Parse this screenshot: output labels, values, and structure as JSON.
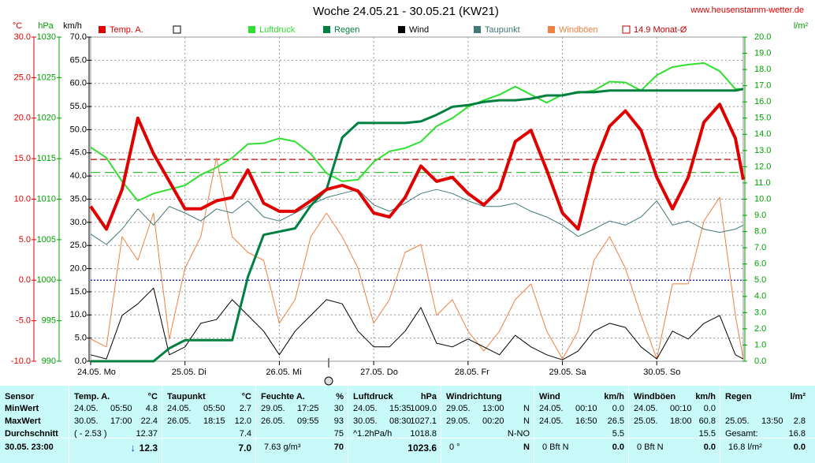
{
  "chart_data": {
    "type": "line",
    "title": "Woche 24.05.21 - 30.05.21 (KW21)",
    "source": "www.heusenstamm-wetter.de",
    "xlim": [
      0,
      166
    ],
    "xticks": [
      {
        "value": 0,
        "label": "24.05. Mo"
      },
      {
        "value": 24,
        "label": "25.05. Di"
      },
      {
        "value": 48,
        "label": "26.05. Mi"
      },
      {
        "value": 72,
        "label": "27.05. Do"
      },
      {
        "value": 96,
        "label": "28.05. Fr"
      },
      {
        "value": 120,
        "label": "29.05. Sa"
      },
      {
        "value": 144,
        "label": "30.05. So"
      }
    ],
    "grid": true,
    "axes": {
      "temp": {
        "unit": "°C",
        "color": "#e00000",
        "lim": [
          -10,
          30
        ],
        "ticks": [
          {
            "value": 30,
            "label": "30.0"
          },
          {
            "value": 25,
            "label": "25.0"
          },
          {
            "value": 20,
            "label": "20.0"
          },
          {
            "value": 15,
            "label": "15.0"
          },
          {
            "value": 10,
            "label": "10.0"
          },
          {
            "value": 5,
            "label": "5.0"
          },
          {
            "value": 0,
            "label": "0.0"
          },
          {
            "value": -5,
            "label": "-5.0"
          },
          {
            "value": -10,
            "label": "-10.0"
          }
        ]
      },
      "pressure": {
        "unit": "hPa",
        "color": "#00a000",
        "lim": [
          990,
          1030
        ],
        "ticks": [
          1030,
          1025,
          1020,
          1015,
          1010,
          1005,
          1000,
          995,
          990
        ]
      },
      "wind": {
        "unit": "km/h",
        "color": "#000000",
        "lim": [
          0,
          70
        ],
        "ticks": [
          {
            "value": 70,
            "label": "70.0"
          },
          {
            "value": 65,
            "label": "65.0"
          },
          {
            "value": 60,
            "label": "60.0"
          },
          {
            "value": 55,
            "label": "55.0"
          },
          {
            "value": 50,
            "label": "50.0"
          },
          {
            "value": 45,
            "label": "45.0"
          },
          {
            "value": 40,
            "label": "40.0"
          },
          {
            "value": 35,
            "label": "35.0"
          },
          {
            "value": 30,
            "label": "30.0"
          },
          {
            "value": 25,
            "label": "25.0"
          },
          {
            "value": 20,
            "label": "20.0"
          },
          {
            "value": 15,
            "label": "15.0"
          },
          {
            "value": 10,
            "label": "10.0"
          },
          {
            "value": 5,
            "label": "5.0"
          },
          {
            "value": 0,
            "label": "0.0"
          }
        ]
      },
      "rain": {
        "unit": "l/m²",
        "color": "#00a000",
        "lim": [
          0,
          20
        ],
        "ticks": [
          {
            "value": 20,
            "label": "20.0"
          },
          {
            "value": 19,
            "label": "19.0"
          },
          {
            "value": 18,
            "label": "18.0"
          },
          {
            "value": 17,
            "label": "17.0"
          },
          {
            "value": 16,
            "label": "16.0"
          },
          {
            "value": 15,
            "label": "15.0"
          },
          {
            "value": 14,
            "label": "14.0"
          },
          {
            "value": 13,
            "label": "13.0"
          },
          {
            "value": 12,
            "label": "12.0"
          },
          {
            "value": 11,
            "label": "11.0"
          },
          {
            "value": 10,
            "label": "10.0"
          },
          {
            "value": 9,
            "label": "9.0"
          },
          {
            "value": 8,
            "label": "8.0"
          },
          {
            "value": 7,
            "label": "7.0"
          },
          {
            "value": 6,
            "label": "6.0"
          },
          {
            "value": 5,
            "label": "5.0"
          },
          {
            "value": 4,
            "label": "4.0"
          },
          {
            "value": 3,
            "label": "3.0"
          },
          {
            "value": 2,
            "label": "2.0"
          },
          {
            "value": 1,
            "label": "1.0"
          },
          {
            "value": 0,
            "label": "0.0"
          }
        ]
      }
    },
    "x": [
      0,
      4,
      8,
      12,
      16,
      20,
      24,
      28,
      32,
      36,
      40,
      44,
      48,
      52,
      56,
      60,
      64,
      68,
      72,
      76,
      80,
      84,
      88,
      92,
      96,
      100,
      104,
      108,
      112,
      116,
      120,
      124,
      128,
      132,
      136,
      140,
      144,
      148,
      152,
      156,
      160,
      164,
      166
    ],
    "series": [
      {
        "name": "Windböen",
        "color": "#f08040",
        "axis": "wind",
        "width": 1,
        "values": [
          4.8,
          3.1,
          26.9,
          21.8,
          32.0,
          4.8,
          20.1,
          26.9,
          43.9,
          26.9,
          23.5,
          21.8,
          8.2,
          13.3,
          26.9,
          32.0,
          26.9,
          20.1,
          8.2,
          13.3,
          23.5,
          25.2,
          9.9,
          13.3,
          6.5,
          2.2,
          6.5,
          13.3,
          16.7,
          6.5,
          0.5,
          6.5,
          21.8,
          26.9,
          20.1,
          9.9,
          0.5,
          16.7,
          16.7,
          30.3,
          35.4,
          9.9,
          0.5
        ]
      },
      {
        "name": "Wind",
        "color": "#000000",
        "axis": "wind",
        "width": 1,
        "values": [
          1.4,
          0.5,
          9.9,
          12.4,
          15.8,
          1.4,
          3.1,
          8.2,
          9.0,
          13.3,
          9.9,
          6.5,
          1.4,
          6.5,
          9.9,
          13.3,
          12.4,
          6.5,
          3.1,
          3.1,
          6.5,
          11.6,
          3.9,
          3.1,
          4.8,
          3.1,
          1.4,
          5.6,
          3.1,
          1.4,
          0.3,
          2.2,
          6.5,
          8.2,
          7.3,
          3.1,
          0.5,
          6.5,
          4.8,
          8.2,
          9.9,
          1.4,
          0.5
        ]
      },
      {
        "name": "Taupunkt",
        "color": "#407878",
        "axis": "temp",
        "width": 1,
        "values": [
          5.7,
          4.4,
          6.3,
          8.8,
          6.8,
          9.1,
          8.3,
          7.3,
          8.8,
          8.3,
          9.8,
          7.8,
          7.3,
          8.3,
          9.3,
          10.2,
          10.7,
          11.2,
          9.3,
          8.5,
          9.5,
          10.7,
          11.2,
          10.7,
          9.8,
          9.1,
          9.1,
          9.5,
          8.5,
          7.8,
          6.8,
          5.4,
          6.3,
          7.3,
          6.8,
          7.8,
          9.8,
          6.8,
          7.3,
          6.3,
          5.9,
          6.3,
          6.8
        ]
      },
      {
        "name": "Luftdruck",
        "color": "#30e030",
        "axis": "pressure",
        "width": 2,
        "values": [
          1016.4,
          1015.1,
          1012.2,
          1009.8,
          1010.7,
          1011.2,
          1011.7,
          1013.0,
          1013.9,
          1015.1,
          1016.8,
          1016.9,
          1017.5,
          1017.1,
          1015.6,
          1013.2,
          1012.2,
          1012.4,
          1014.6,
          1015.9,
          1016.3,
          1017.1,
          1019.0,
          1020.0,
          1021.4,
          1022.2,
          1022.9,
          1023.9,
          1022.9,
          1021.9,
          1022.9,
          1023.1,
          1023.4,
          1024.5,
          1024.4,
          1023.4,
          1025.3,
          1026.3,
          1026.6,
          1026.8,
          1025.8,
          1023.6,
          1023.6
        ]
      },
      {
        "name": "Regen",
        "color": "#008040",
        "axis": "rain",
        "width": 3,
        "values": [
          0,
          0,
          0,
          0,
          0,
          0.8,
          1.3,
          1.3,
          1.3,
          1.3,
          5.2,
          7.8,
          8.0,
          8.2,
          9.6,
          10.6,
          13.8,
          14.7,
          14.7,
          14.7,
          14.7,
          14.8,
          15.2,
          15.7,
          15.8,
          16.0,
          16.1,
          16.1,
          16.2,
          16.4,
          16.4,
          16.6,
          16.6,
          16.7,
          16.7,
          16.7,
          16.7,
          16.7,
          16.7,
          16.7,
          16.7,
          16.7,
          16.8
        ]
      },
      {
        "name": "Temp. A.",
        "color": "#e00000",
        "axis": "temp",
        "width": 4,
        "values": [
          9.1,
          6.3,
          11.2,
          20.0,
          15.6,
          12.2,
          8.8,
          8.8,
          9.8,
          10.2,
          13.6,
          9.5,
          8.5,
          8.5,
          9.8,
          11.2,
          11.7,
          11.0,
          8.3,
          7.8,
          10.2,
          14.1,
          12.2,
          12.7,
          10.7,
          9.3,
          11.2,
          17.1,
          18.5,
          13.6,
          8.3,
          6.3,
          14.1,
          19.0,
          20.9,
          18.5,
          12.7,
          8.8,
          12.7,
          19.5,
          21.7,
          17.5,
          12.4
        ]
      }
    ],
    "reference_lines": [
      {
        "name": "14.9 Monat-Ø",
        "value": 14.9,
        "axis": "temp",
        "color": "#c00000",
        "dash": "8 4"
      },
      {
        "value": 1013.3,
        "axis": "pressure",
        "color": "#30c030",
        "dash": "12 6"
      },
      {
        "value": 0,
        "axis": "temp",
        "color": "#0000e0",
        "dash": "2 2"
      }
    ]
  },
  "table": {
    "sensor_column": [
      "Sensor",
      "MinWert",
      "MaxWert",
      "Durchschnitt",
      "30.05. 23:00"
    ],
    "columns": [
      {
        "title": "Temp. A.",
        "unit": "°C",
        "rows": [
          [
            "24.05.",
            "05:50",
            "4.8"
          ],
          [
            "30.05.",
            "17:00",
            "22.4"
          ],
          [
            "( - 2.53 )",
            "12.37"
          ],
          [
            "12.3"
          ]
        ]
      },
      {
        "title": "Taupunkt",
        "unit": "°C",
        "rows": [
          [
            "24.05.",
            "05:50",
            "2.7"
          ],
          [
            "26.05.",
            "18:15",
            "12.0"
          ],
          [
            "7.4"
          ],
          [
            "7.0"
          ]
        ]
      },
      {
        "title": "Feuchte A.",
        "unit": "%",
        "rows": [
          [
            "29.05.",
            "17:25",
            "30"
          ],
          [
            "26.05.",
            "09:55",
            "93"
          ],
          [
            "75"
          ],
          [
            "7.63 g/m³",
            "70"
          ]
        ]
      },
      {
        "title": "Luftdruck",
        "unit": "hPa",
        "rows": [
          [
            "24.05.",
            "15:35",
            "1009.0"
          ],
          [
            "30.05.",
            "08:30",
            "1027.1"
          ],
          [
            "^1.2hPa/h",
            "1018.8"
          ],
          [
            "1023.6"
          ]
        ]
      },
      {
        "title": "Windrichtung",
        "rows": [
          [
            "29.05.",
            "13:00",
            "N"
          ],
          [
            "29.05.",
            "00:20",
            "N"
          ],
          [
            "N-NO"
          ],
          [
            "0 °",
            "N"
          ]
        ]
      },
      {
        "title": "Wind",
        "unit": "km/h",
        "rows": [
          [
            "24.05.",
            "00:10",
            "0.0"
          ],
          [
            "24.05.",
            "16:50",
            "26.5"
          ],
          [
            "5.5"
          ],
          [
            "0 Bft N",
            "0.0"
          ]
        ]
      },
      {
        "title": "Windböen",
        "unit": "km/h",
        "rows": [
          [
            "24.05.",
            "00:10",
            "0.0"
          ],
          [
            "25.05.",
            "18:00",
            "60.8"
          ],
          [
            "15.5"
          ],
          [
            "0 Bft N",
            "0.0"
          ]
        ]
      },
      {
        "title": "Regen",
        "unit": "l/m²",
        "rows": [
          [],
          [
            "25.05.",
            "13:50",
            "2.8"
          ],
          [
            "Gesamt:",
            "16.8"
          ],
          [
            "16.8 l/m²",
            "0.0"
          ]
        ]
      }
    ]
  }
}
